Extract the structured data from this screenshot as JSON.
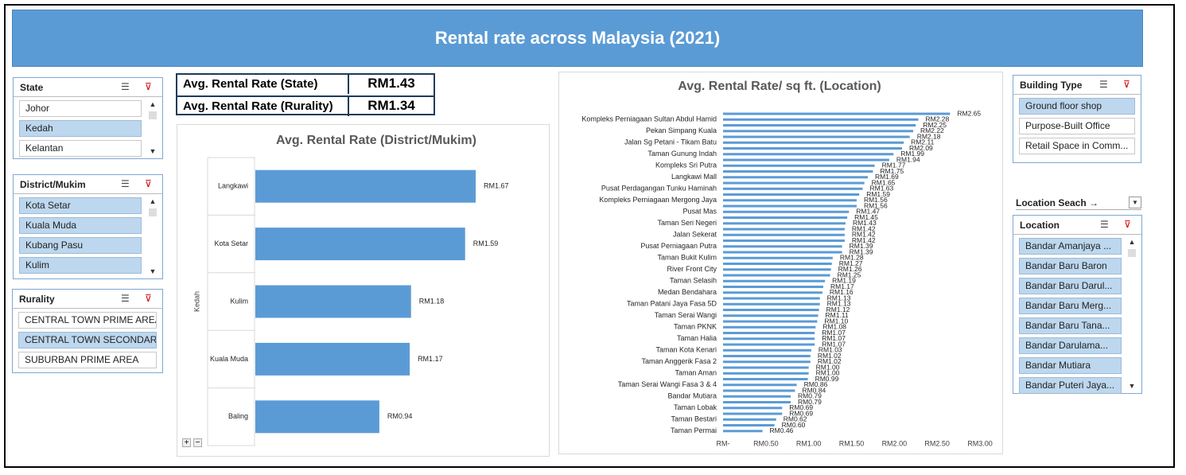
{
  "header": {
    "title": "Rental rate across Malaysia (2021)"
  },
  "kpis": [
    {
      "label": "Avg. Rental Rate (State)",
      "value": "RM1.43"
    },
    {
      "label": "Avg. Rental Rate (Rurality)",
      "value": "RM1.34"
    }
  ],
  "slicers": [
    {
      "title": "State",
      "items": [
        {
          "label": "Johor",
          "selected": false
        },
        {
          "label": "Kedah",
          "selected": true
        },
        {
          "label": "Kelantan",
          "selected": false
        }
      ]
    },
    {
      "title": "District/Mukim",
      "items": [
        {
          "label": "Kota Setar",
          "selected": true
        },
        {
          "label": "Kuala Muda",
          "selected": true
        },
        {
          "label": "Kubang Pasu",
          "selected": true
        },
        {
          "label": "Kulim",
          "selected": true
        }
      ]
    },
    {
      "title": "Rurality",
      "items": [
        {
          "label": "CENTRAL TOWN PRIME AREA",
          "selected": false
        },
        {
          "label": "CENTRAL TOWN SECONDARY ...",
          "selected": true
        },
        {
          "label": "SUBURBAN PRIME AREA",
          "selected": false
        }
      ]
    },
    {
      "title": "Building Type",
      "items": [
        {
          "label": "Ground floor shop",
          "selected": true
        },
        {
          "label": "Purpose-Built Office",
          "selected": false
        },
        {
          "label": "Retail Space in Comm...",
          "selected": false
        }
      ]
    },
    {
      "title": "Location",
      "items": [
        {
          "label": "Bandar Amanjaya ...",
          "selected": true
        },
        {
          "label": "Bandar Baru Baron",
          "selected": true
        },
        {
          "label": "Bandar Baru Darul...",
          "selected": true
        },
        {
          "label": "Bandar Baru Merg...",
          "selected": true
        },
        {
          "label": "Bandar Baru Tana...",
          "selected": true
        },
        {
          "label": "Bandar Darulama...",
          "selected": true
        },
        {
          "label": "Bandar Mutiara",
          "selected": true
        },
        {
          "label": "Bandar Puteri Jaya...",
          "selected": true
        }
      ]
    }
  ],
  "location_search": {
    "label": "Location Seach →"
  },
  "chart_data": [
    {
      "type": "hbar",
      "title": "Avg. Rental Rate (District/Mukim)",
      "group": "Kedah",
      "categories": [
        "Langkawi",
        "Kota Setar",
        "Kulim",
        "Kuala Muda",
        "Baling"
      ],
      "values": [
        1.67,
        1.59,
        1.18,
        1.17,
        0.94
      ],
      "value_labels": [
        "RM1.67",
        "RM1.59",
        "RM1.18",
        "RM1.17",
        "RM0.94"
      ],
      "color": "#5b9bd5"
    },
    {
      "type": "hbar",
      "title": "Avg. Rental Rate/ sq ft. (Location)",
      "categories": [
        null,
        "Kompleks Perniagaan Sultan Abdul Hamid",
        null,
        "Pekan Simpang Kuala",
        null,
        "Jalan Sg Petani - Tikam Batu",
        null,
        "Taman Gunung Indah",
        null,
        "Kompleks Sri Putra",
        null,
        "Langkawi Mall",
        null,
        "Pusat Perdagangan Tunku Haminah",
        null,
        "Kompleks Perniagaan Mergong Jaya",
        null,
        "Pusat Mas",
        null,
        "Taman Seri Negeri",
        null,
        "Jalan Sekerat",
        null,
        "Pusat Perniagaan Putra",
        null,
        "Taman Bukit Kulim",
        null,
        "River Front City",
        null,
        "Taman Selasih",
        null,
        "Medan Bendahara",
        null,
        "Taman Patani Jaya Fasa 5D",
        null,
        "Taman Serai Wangi",
        null,
        "Taman PKNK",
        null,
        "Taman Halia",
        null,
        "Taman Kota Kenari",
        null,
        "Taman Anggerik Fasa 2",
        null,
        "Taman Aman",
        null,
        "Taman Serai Wangi Fasa 3 & 4",
        null,
        "Bandar Mutiara",
        null,
        "Taman Lobak",
        null,
        "Taman Bestari",
        null,
        "Taman Permai"
      ],
      "values": [
        2.65,
        2.28,
        2.25,
        2.22,
        2.18,
        2.11,
        2.09,
        1.99,
        1.94,
        1.77,
        1.75,
        1.69,
        1.65,
        1.63,
        1.59,
        1.56,
        1.56,
        1.47,
        1.45,
        1.43,
        1.42,
        1.42,
        1.42,
        1.39,
        1.39,
        1.28,
        1.27,
        1.26,
        1.25,
        1.19,
        1.17,
        1.16,
        1.13,
        1.13,
        1.12,
        1.11,
        1.1,
        1.08,
        1.07,
        1.07,
        1.07,
        1.03,
        1.02,
        1.02,
        1.0,
        1.0,
        0.99,
        0.86,
        0.84,
        0.79,
        0.79,
        0.69,
        0.69,
        0.62,
        0.6,
        0.46
      ],
      "value_labels": [
        "RM2.65",
        "RM2.28",
        "RM2.25",
        "RM2.22",
        "RM2.18",
        "RM2.11",
        "RM2.09",
        "RM1.99",
        "RM1.94",
        "RM1.77",
        "RM1.75",
        "RM1.69",
        "RM1.65",
        "RM1.63",
        "RM1.59",
        "RM1.56",
        "RM1.56",
        "RM1.47",
        "RM1.45",
        "RM1.43",
        "RM1.42",
        "RM1.42",
        "RM1.42",
        "RM1.39",
        "RM1.39",
        "RM1.28",
        "RM1.27",
        "RM1.26",
        "RM1.25",
        "RM1.19",
        "RM1.17",
        "RM1.16",
        "RM1.13",
        "RM1.13",
        "RM1.12",
        "RM1.11",
        "RM1.10",
        "RM1.08",
        "RM1.07",
        "RM1.07",
        "RM1.07",
        "RM1.03",
        "RM1.02",
        "RM1.02",
        "RM1.00",
        "RM1.00",
        "RM0.99",
        "RM0.86",
        "RM0.84",
        "RM0.79",
        "RM0.79",
        "RM0.69",
        "RM0.69",
        "RM0.62",
        "RM0.60",
        "RM0.46"
      ],
      "color": "#5b9bd5",
      "xlim": [
        0,
        3
      ],
      "xticks": [
        {
          "value": 0,
          "label": "RM-"
        },
        {
          "value": 0.5,
          "label": "RM0.50"
        },
        {
          "value": 1,
          "label": "RM1.00"
        },
        {
          "value": 1.5,
          "label": "RM1.50"
        },
        {
          "value": 2,
          "label": "RM2.00"
        },
        {
          "value": 2.5,
          "label": "RM2.50"
        },
        {
          "value": 3,
          "label": "RM3.00"
        }
      ]
    }
  ]
}
